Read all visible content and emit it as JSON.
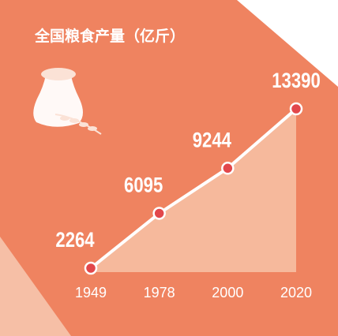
{
  "chart_data": {
    "type": "line",
    "title": "全国粮食产量（亿斤）",
    "categories": [
      "1949",
      "1978",
      "2000",
      "2020"
    ],
    "values": [
      2264,
      6095,
      9244,
      13390
    ],
    "color": "#ffffff",
    "marker_color": "#e2474b",
    "area_color": "#f6b99c"
  }
}
